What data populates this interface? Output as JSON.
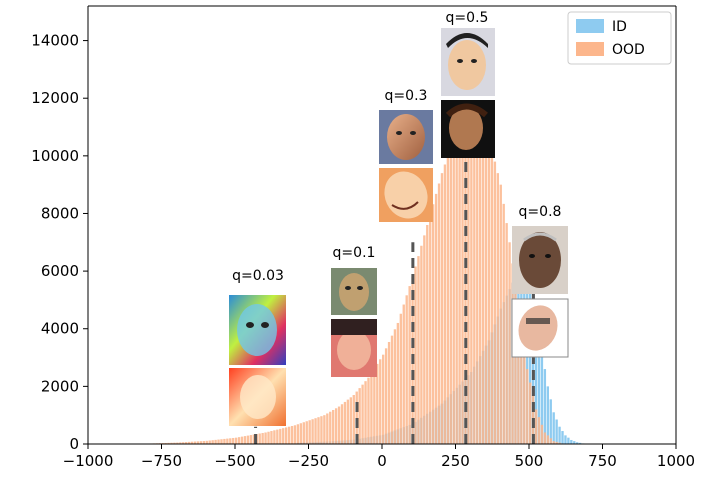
{
  "chart_data": {
    "type": "bar",
    "title": "",
    "xlabel": "",
    "ylabel": "",
    "xlim": [
      -1000,
      1000
    ],
    "ylim": [
      0,
      15200
    ],
    "x_ticks": [
      "−1000",
      "−750",
      "−500",
      "−250",
      "0",
      "250",
      "500",
      "750",
      "1000"
    ],
    "y_ticks": [
      "0",
      "2000",
      "4000",
      "6000",
      "8000",
      "10000",
      "12000",
      "14000"
    ],
    "legend": {
      "placement": "top-right",
      "entries": [
        "ID",
        "OOD"
      ]
    },
    "colors": {
      "ID": "#8ecbf0",
      "OOD": "#fcb68c",
      "quantile_line": "#555555"
    },
    "grid": false,
    "bin_width": 20,
    "series": [
      {
        "name": "ID",
        "bins": [
          [
            -300,
            40
          ],
          [
            -200,
            80
          ],
          [
            -100,
            150
          ],
          [
            0,
            320
          ],
          [
            100,
            700
          ],
          [
            200,
            1400
          ],
          [
            300,
            2500
          ],
          [
            360,
            3600
          ],
          [
            400,
            4700
          ],
          [
            440,
            5600
          ],
          [
            480,
            6100
          ],
          [
            500,
            5400
          ],
          [
            520,
            4500
          ],
          [
            540,
            3200
          ],
          [
            560,
            2000
          ],
          [
            580,
            1100
          ],
          [
            600,
            600
          ],
          [
            620,
            300
          ],
          [
            640,
            140
          ],
          [
            660,
            60
          ],
          [
            680,
            20
          ],
          [
            700,
            0
          ]
        ]
      },
      {
        "name": "OOD",
        "bins": [
          [
            -900,
            5
          ],
          [
            -800,
            15
          ],
          [
            -700,
            50
          ],
          [
            -600,
            110
          ],
          [
            -500,
            220
          ],
          [
            -400,
            400
          ],
          [
            -300,
            650
          ],
          [
            -200,
            1000
          ],
          [
            -150,
            1300
          ],
          [
            -100,
            1700
          ],
          [
            -50,
            2300
          ],
          [
            0,
            3100
          ],
          [
            50,
            4200
          ],
          [
            100,
            5800
          ],
          [
            150,
            7600
          ],
          [
            200,
            9400
          ],
          [
            250,
            10900
          ],
          [
            300,
            11500
          ],
          [
            350,
            11000
          ],
          [
            400,
            9000
          ],
          [
            430,
            7000
          ],
          [
            460,
            4800
          ],
          [
            490,
            2600
          ],
          [
            520,
            1200
          ],
          [
            550,
            400
          ],
          [
            580,
            100
          ],
          [
            610,
            20
          ],
          [
            640,
            0
          ]
        ]
      }
    ],
    "quantiles": [
      {
        "label": "q=0.03",
        "x": -430,
        "line_top": 600
      },
      {
        "label": "q=0.1",
        "x": -85,
        "line_top": 1500
      },
      {
        "label": "q=0.3",
        "x": 105,
        "line_top": 7000
      },
      {
        "label": "q=0.5",
        "x": 285,
        "line_top": 11000
      },
      {
        "label": "q=0.8",
        "x": 515,
        "line_top": 5300
      }
    ]
  }
}
